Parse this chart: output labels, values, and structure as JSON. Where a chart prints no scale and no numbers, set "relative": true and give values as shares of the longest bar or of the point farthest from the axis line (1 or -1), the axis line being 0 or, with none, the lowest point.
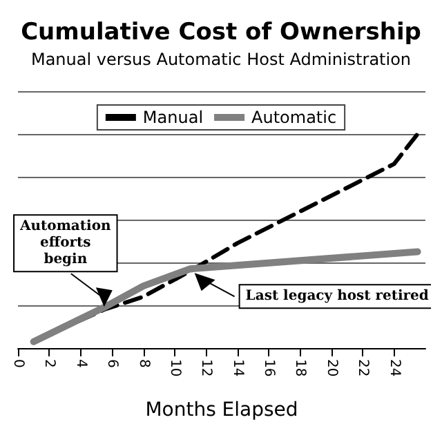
{
  "chart_data": {
    "type": "line",
    "title": "Cumulative Cost of Ownership",
    "subtitle": "Manual versus Automatic Host Administration",
    "xlabel": "Months Elapsed",
    "relative": true,
    "grid": "y",
    "legend": "top",
    "marker": "none",
    "xlim": [
      0,
      26
    ],
    "xticks": [
      0,
      2,
      4,
      6,
      8,
      10,
      12,
      14,
      16,
      18,
      20,
      22,
      24
    ],
    "series": [
      {
        "name": "Manual",
        "color": "#000000",
        "line_style": "dashed",
        "x": [
          1,
          5.5,
          8,
          11,
          14,
          24,
          25.5
        ],
        "values": [
          0.03,
          0.18,
          0.24,
          0.36,
          0.49,
          0.86,
          1
        ]
      },
      {
        "name": "Automatic",
        "color": "#808080",
        "line_style": "solid",
        "x": [
          1,
          5.5,
          8,
          11,
          25.5
        ],
        "values": [
          0.03,
          0.19,
          0.29,
          0.37,
          0.45
        ]
      }
    ],
    "annotations": [
      {
        "text": "Automation\nefforts\nbegin",
        "x": 5.5,
        "y": 0.18
      },
      {
        "text": "Last legacy host retired",
        "x": 11,
        "y": 0.37
      }
    ]
  }
}
